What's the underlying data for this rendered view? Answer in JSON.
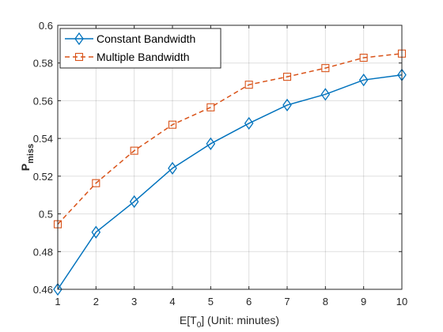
{
  "chart_data": {
    "type": "line",
    "title": "",
    "xlabel": {
      "base": "E[T",
      "sub": "0",
      "rest": "] (Unit: minutes)"
    },
    "ylabel": {
      "base": "P",
      "sub": "miss"
    },
    "x": [
      1,
      2,
      3,
      4,
      5,
      6,
      7,
      8,
      9,
      10
    ],
    "xlim": [
      1,
      10
    ],
    "ylim": [
      0.46,
      0.6
    ],
    "xticks": [
      "1",
      "2",
      "3",
      "4",
      "5",
      "6",
      "7",
      "8",
      "9",
      "10"
    ],
    "yticks": [
      "0.46",
      "0.48",
      "0.5",
      "0.52",
      "0.54",
      "0.56",
      "0.58",
      "0.6"
    ],
    "grid": true,
    "legend_position": "top-left",
    "series": [
      {
        "name": "Constant Bandwidth",
        "values": [
          0.46,
          0.4903,
          0.5065,
          0.5242,
          0.5372,
          0.548,
          0.5577,
          0.5634,
          0.571,
          0.5737
        ],
        "color": "#0072BD",
        "marker": "diamond",
        "line_style": "solid"
      },
      {
        "name": "Multiple Bandwidth",
        "values": [
          0.4945,
          0.5163,
          0.5335,
          0.5473,
          0.5565,
          0.5685,
          0.5727,
          0.5773,
          0.5828,
          0.585
        ],
        "color": "#D95319",
        "marker": "square",
        "line_style": "dashed"
      }
    ]
  }
}
